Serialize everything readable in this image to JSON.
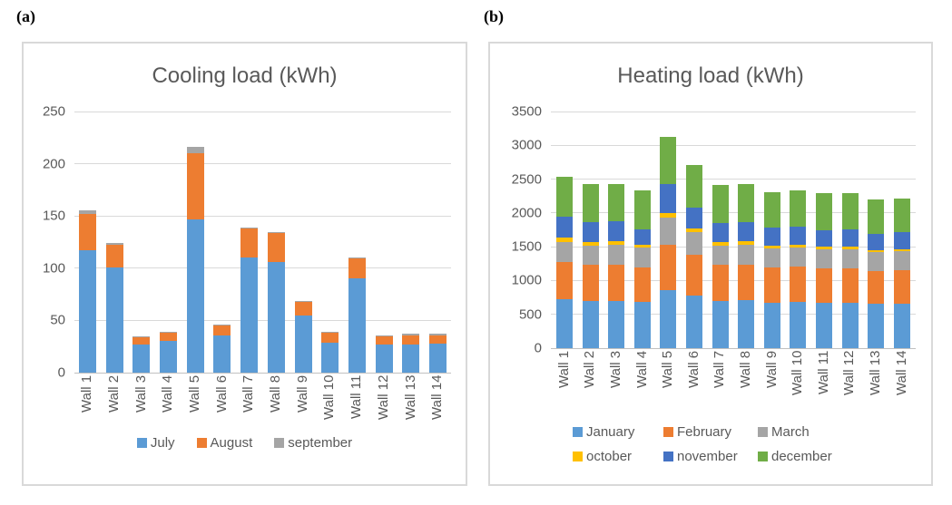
{
  "figure_labels": {
    "a": "(a)",
    "b": "(b)"
  },
  "chart_data": [
    {
      "type": "bar",
      "stacked": true,
      "title": "Cooling load (kWh)",
      "xlabel": "",
      "ylabel": "",
      "ylim": [
        0,
        250
      ],
      "ytick": 50,
      "grid": true,
      "legend_position": "bottom",
      "categories": [
        "Wall 1",
        "Wall 2",
        "Wall 3",
        "Wall 4",
        "Wall 5",
        "Wall 6",
        "Wall 7",
        "Wall 8",
        "Wall 9",
        "Wall 10",
        "Wall 11",
        "Wall 12",
        "Wall 13",
        "Wall 14"
      ],
      "series": [
        {
          "name": "July",
          "color": "#5B9BD5",
          "values": [
            117,
            101,
            27,
            30,
            147,
            36,
            110,
            106,
            55,
            29,
            90,
            27,
            27,
            28
          ]
        },
        {
          "name": "August",
          "color": "#ED7D31",
          "values": [
            35,
            21,
            7,
            8,
            63,
            9,
            28,
            28,
            13,
            9,
            19,
            8,
            9,
            8
          ]
        },
        {
          "name": "september",
          "color": "#A5A5A5",
          "values": [
            3,
            2,
            1,
            1,
            6,
            1,
            1,
            1,
            1,
            1,
            1,
            1,
            1,
            1
          ]
        }
      ],
      "legend_rows": [
        [
          "July",
          "August",
          "september"
        ]
      ]
    },
    {
      "type": "bar",
      "stacked": true,
      "title": "Heating load (kWh)",
      "xlabel": "",
      "ylabel": "",
      "ylim": [
        0,
        3500
      ],
      "ytick": 500,
      "grid": true,
      "legend_position": "bottom",
      "categories": [
        "Wall 1",
        "Wall 2",
        "Wall 3",
        "Wall 4",
        "Wall 5",
        "Wall 6",
        "Wall 7",
        "Wall 8",
        "Wall 9",
        "Wall 10",
        "Wall 11",
        "Wall 12",
        "Wall 13",
        "Wall 14"
      ],
      "series": [
        {
          "name": "January",
          "color": "#5B9BD5",
          "values": [
            720,
            700,
            700,
            680,
            855,
            780,
            700,
            710,
            675,
            680,
            670,
            670,
            655,
            660
          ]
        },
        {
          "name": "February",
          "color": "#ED7D31",
          "values": [
            560,
            530,
            540,
            515,
            670,
            595,
            530,
            525,
            520,
            530,
            505,
            510,
            485,
            490
          ]
        },
        {
          "name": "March",
          "color": "#A5A5A5",
          "values": [
            290,
            290,
            290,
            290,
            405,
            340,
            290,
            290,
            280,
            280,
            285,
            280,
            280,
            285
          ]
        },
        {
          "name": "october",
          "color": "#FFC000",
          "values": [
            60,
            55,
            55,
            45,
            70,
            50,
            55,
            55,
            45,
            45,
            40,
            40,
            30,
            30
          ]
        },
        {
          "name": "november",
          "color": "#4472C4",
          "values": [
            320,
            290,
            290,
            230,
            430,
            315,
            275,
            280,
            260,
            265,
            250,
            255,
            245,
            250
          ]
        },
        {
          "name": "december",
          "color": "#70AD47",
          "values": [
            585,
            560,
            555,
            575,
            700,
            630,
            570,
            570,
            530,
            530,
            540,
            540,
            505,
            495
          ]
        }
      ],
      "legend_rows": [
        [
          "January",
          "February",
          "March"
        ],
        [
          "october",
          "november",
          "december"
        ]
      ]
    }
  ]
}
